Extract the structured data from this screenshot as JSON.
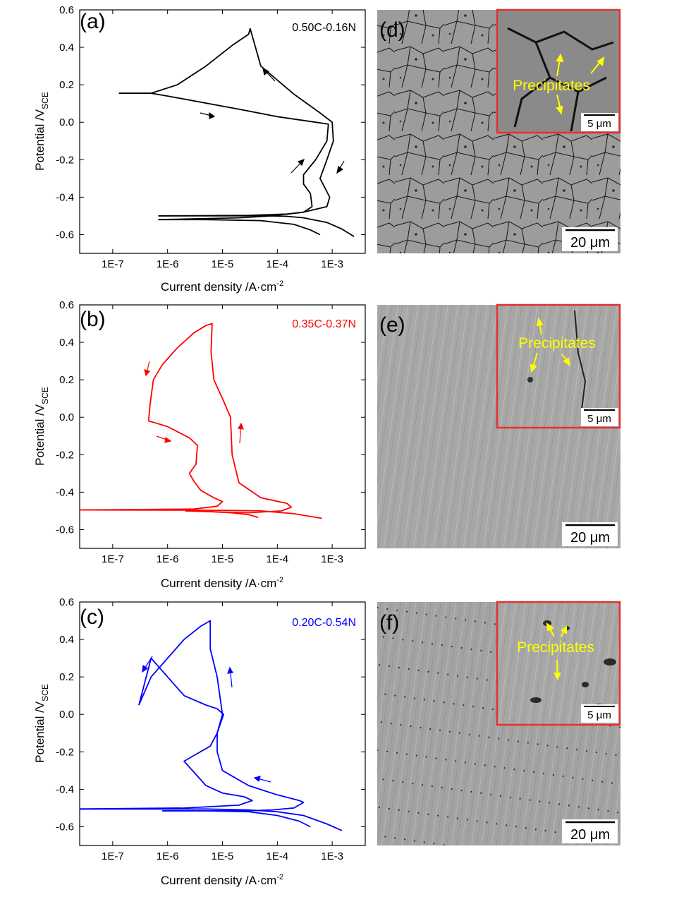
{
  "figure": {
    "panels": [
      {
        "letter": "(a)"
      },
      {
        "letter": "(b)"
      },
      {
        "letter": "(c)"
      },
      {
        "letter": "(d)"
      },
      {
        "letter": "(e)"
      },
      {
        "letter": "(f)"
      }
    ],
    "micrographs": [
      {
        "letter": "(d)",
        "inset_label": "Precipitates",
        "inset_scale": "5 μm",
        "scale_bar": "20 μm"
      },
      {
        "letter": "(e)",
        "inset_label": "Precipitates",
        "inset_scale": "5 μm",
        "scale_bar": "20 μm"
      },
      {
        "letter": "(f)",
        "inset_label": "Precipitates",
        "inset_scale": "5 μm",
        "scale_bar": "20 μm"
      }
    ]
  },
  "chart_data": [
    {
      "type": "line",
      "panel": "(a)",
      "sample_label": "0.50C-0.16N",
      "color": "#000000",
      "xlabel": "Current density /A·cm",
      "xlabel_sup": "-2",
      "ylabel": "Potential /V",
      "ylabel_sub": "SCE",
      "xscale": "log",
      "xlim": [
        2.5e-08,
        0.004
      ],
      "ylim": [
        -0.7,
        0.6
      ],
      "xticks": [
        "1E-7",
        "1E-6",
        "1E-5",
        "1E-4",
        "1E-3"
      ],
      "yticks": [
        "-0.6",
        "-0.4",
        "-0.2",
        "0.0",
        "0.2",
        "0.4",
        "0.6"
      ],
      "series": [
        {
          "x": [
            0.0025,
            0.0015,
            0.0008,
            0.0003,
            0.00015,
            7e-05,
            4e-05,
            6.8e-07
          ],
          "y": [
            -0.61,
            -0.57,
            -0.535,
            -0.51,
            -0.502,
            -0.5,
            -0.5,
            -0.5
          ]
        },
        {
          "x": [
            6.8e-07,
            3e-05,
            0.00015,
            0.0003,
            0.00043,
            0.0004,
            0.0003,
            0.0003,
            0.0005,
            0.0008,
            0.00085,
            0.0005,
            0.0001,
            2e-05,
            1e-06,
            5e-07,
            1.3e-07
          ],
          "y": [
            -0.5,
            -0.497,
            -0.49,
            -0.48,
            -0.45,
            -0.38,
            -0.33,
            -0.28,
            -0.2,
            -0.1,
            -0.01,
            0.0,
            0.03,
            0.07,
            0.14,
            0.155,
            0.155
          ]
        },
        {
          "x": [
            1.3e-07,
            5e-07,
            1.5e-06,
            5e-06,
            1.5e-05,
            3e-05,
            3.2e-05,
            5e-05,
            0.0002,
            0.0006,
            0.001,
            0.00105,
            0.0008,
            0.0006,
            0.0009,
            0.0008,
            0.0003,
            8e-05,
            2e-05,
            6.8e-07
          ],
          "y": [
            0.155,
            0.155,
            0.2,
            0.3,
            0.41,
            0.47,
            0.5,
            0.3,
            0.15,
            0.05,
            0.0,
            -0.1,
            -0.2,
            -0.3,
            -0.4,
            -0.45,
            -0.48,
            -0.5,
            -0.51,
            -0.52
          ]
        },
        {
          "x": [
            6.8e-07,
            5e-06,
            5e-05,
            0.0002,
            0.0004,
            0.0006
          ],
          "y": [
            -0.52,
            -0.52,
            -0.525,
            -0.545,
            -0.575,
            -0.6
          ]
        }
      ]
    },
    {
      "type": "line",
      "panel": "(b)",
      "sample_label": "0.35C-0.37N",
      "color": "#ff0000",
      "xlabel": "Current density /A·cm",
      "xlabel_sup": "-2",
      "ylabel": "Potential /V",
      "ylabel_sub": "SCE",
      "xscale": "log",
      "xlim": [
        2.5e-08,
        0.004
      ],
      "ylim": [
        -0.7,
        0.6
      ],
      "xticks": [
        "1E-7",
        "1E-6",
        "1E-5",
        "1E-4",
        "1E-3"
      ],
      "yticks": [
        "-0.6",
        "-0.4",
        "-0.2",
        "0.0",
        "0.2",
        "0.4",
        "0.6"
      ],
      "series": [
        {
          "x": [
            0.00065,
            0.0002,
            5e-05,
            1e-05,
            2e-06,
            2.5e-08
          ],
          "y": [
            -0.54,
            -0.515,
            -0.5,
            -0.497,
            -0.496,
            -0.495
          ]
        },
        {
          "x": [
            2.5e-08,
            3e-06,
            8e-06,
            1e-05,
            7e-06,
            4e-06,
            3e-06,
            2.5e-06,
            3.3e-06,
            3.5e-06,
            2.5e-06,
            1e-06,
            6e-07,
            4.5e-07
          ],
          "y": [
            -0.495,
            -0.49,
            -0.475,
            -0.45,
            -0.43,
            -0.39,
            -0.34,
            -0.3,
            -0.25,
            -0.15,
            -0.11,
            -0.05,
            -0.03,
            -0.02
          ]
        },
        {
          "x": [
            4.5e-07,
            4.8e-07,
            5.5e-07,
            8e-07,
            1.5e-06,
            3e-06,
            5e-06,
            6.5e-06,
            6.2e-06,
            7e-06,
            1e-05,
            1.4e-05,
            1.5e-05,
            2e-05,
            5e-05,
            0.00015,
            0.00018,
            0.00012,
            3e-05,
            2.1e-06
          ],
          "y": [
            -0.02,
            0.07,
            0.2,
            0.28,
            0.37,
            0.45,
            0.49,
            0.5,
            0.35,
            0.2,
            0.1,
            0.0,
            -0.2,
            -0.35,
            -0.43,
            -0.46,
            -0.48,
            -0.5,
            -0.51,
            -0.5
          ]
        },
        {
          "x": [
            2.1e-06,
            5e-06,
            1.5e-05,
            3e-05,
            4.5e-05
          ],
          "y": [
            -0.5,
            -0.503,
            -0.51,
            -0.52,
            -0.535
          ]
        }
      ]
    },
    {
      "type": "line",
      "panel": "(c)",
      "sample_label": "0.20C-0.54N",
      "color": "#0000ff",
      "xlabel": "Current density /A·cm",
      "xlabel_sup": "-2",
      "ylabel": "Potential /V",
      "ylabel_sub": "SCE",
      "xscale": "log",
      "xlim": [
        2.5e-08,
        0.004
      ],
      "ylim": [
        -0.7,
        0.6
      ],
      "xticks": [
        "1E-7",
        "1E-6",
        "1E-5",
        "1E-4",
        "1E-3"
      ],
      "yticks": [
        "-0.6",
        "-0.4",
        "-0.2",
        "0.0",
        "0.2",
        "0.4",
        "0.6"
      ],
      "series": [
        {
          "x": [
            0.0015,
            0.0008,
            0.0003,
            0.0001,
            3e-05,
            5e-06,
            2.5e-08
          ],
          "y": [
            -0.62,
            -0.585,
            -0.54,
            -0.52,
            -0.51,
            -0.505,
            -0.505
          ]
        },
        {
          "x": [
            2.5e-08,
            2e-06,
            2e-05,
            3.5e-05,
            2.5e-05,
            1e-05,
            5e-06,
            2e-06,
            3e-06,
            6e-06,
            8e-06,
            1.05e-05,
            8e-06,
            5e-06,
            2e-06,
            1e-06,
            5e-07,
            3e-07
          ],
          "y": [
            -0.505,
            -0.5,
            -0.485,
            -0.46,
            -0.44,
            -0.42,
            -0.38,
            -0.25,
            -0.22,
            -0.17,
            -0.1,
            0.0,
            0.03,
            0.05,
            0.1,
            0.2,
            0.3,
            0.05
          ]
        },
        {
          "x": [
            3e-07,
            5e-07,
            1e-06,
            2e-06,
            4e-06,
            6e-06,
            6e-06,
            8e-06,
            1e-05,
            8e-06,
            8e-06,
            1e-05,
            3e-05,
            0.0001,
            0.00025,
            0.0003,
            0.0002,
            8e-05,
            3e-05,
            8e-07
          ],
          "y": [
            0.05,
            0.2,
            0.3,
            0.4,
            0.47,
            0.5,
            0.35,
            0.2,
            0.0,
            -0.1,
            -0.2,
            -0.3,
            -0.38,
            -0.43,
            -0.46,
            -0.47,
            -0.5,
            -0.51,
            -0.515,
            -0.515
          ]
        },
        {
          "x": [
            8e-07,
            5e-06,
            3e-05,
            0.0001,
            0.00025,
            0.0004
          ],
          "y": [
            -0.515,
            -0.515,
            -0.52,
            -0.54,
            -0.57,
            -0.6
          ]
        }
      ]
    }
  ]
}
